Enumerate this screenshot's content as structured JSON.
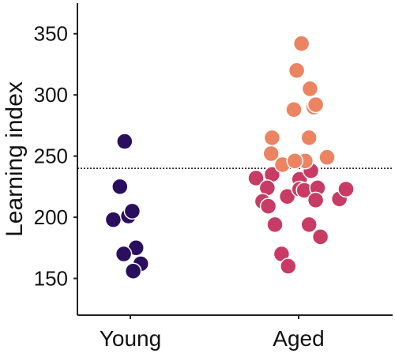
{
  "chart_data": {
    "type": "scatter",
    "ylabel": "Learning index",
    "xlabel": "",
    "title": "",
    "categories": [
      "Young",
      "Aged"
    ],
    "ylim": [
      120,
      375
    ],
    "yticks": [
      150,
      200,
      250,
      300,
      350
    ],
    "reference_line": {
      "y": 240,
      "style": "dotted"
    },
    "grid": false,
    "series": [
      {
        "category": "Young",
        "color": "#2a0f5e",
        "points": [
          {
            "x": -0.06,
            "y": 262
          },
          {
            "x": -0.11,
            "y": 225
          },
          {
            "x": -0.18,
            "y": 198
          },
          {
            "x": -0.02,
            "y": 201
          },
          {
            "x": 0.02,
            "y": 205
          },
          {
            "x": 0.06,
            "y": 175
          },
          {
            "x": -0.07,
            "y": 170
          },
          {
            "x": 0.11,
            "y": 162
          },
          {
            "x": 0.03,
            "y": 156
          }
        ]
      },
      {
        "category": "Aged",
        "color": "#c83b64",
        "points": [
          {
            "x": -0.45,
            "y": 232
          },
          {
            "x": -0.28,
            "y": 235
          },
          {
            "x": -0.33,
            "y": 224
          },
          {
            "x": -0.38,
            "y": 213
          },
          {
            "x": -0.32,
            "y": 209
          },
          {
            "x": -0.12,
            "y": 217
          },
          {
            "x": -0.25,
            "y": 194
          },
          {
            "x": -0.18,
            "y": 170
          },
          {
            "x": -0.11,
            "y": 160
          },
          {
            "x": 0.01,
            "y": 231
          },
          {
            "x": 0.01,
            "y": 223
          },
          {
            "x": 0.06,
            "y": 222
          },
          {
            "x": 0.13,
            "y": 238
          },
          {
            "x": 0.2,
            "y": 224
          },
          {
            "x": 0.18,
            "y": 214
          },
          {
            "x": 0.11,
            "y": 194
          },
          {
            "x": 0.23,
            "y": 184
          },
          {
            "x": 0.43,
            "y": 215
          },
          {
            "x": 0.5,
            "y": 223
          }
        ]
      },
      {
        "category": "Aged",
        "color": "#ec8461",
        "points": [
          {
            "x": -0.28,
            "y": 265
          },
          {
            "x": -0.29,
            "y": 252
          },
          {
            "x": -0.17,
            "y": 243
          },
          {
            "x": -0.05,
            "y": 288
          },
          {
            "x": -0.02,
            "y": 320
          },
          {
            "x": 0.03,
            "y": 342
          },
          {
            "x": 0.12,
            "y": 305
          },
          {
            "x": 0.16,
            "y": 290
          },
          {
            "x": 0.18,
            "y": 292
          },
          {
            "x": 0.11,
            "y": 265
          },
          {
            "x": 0.07,
            "y": 246
          },
          {
            "x": -0.04,
            "y": 246
          },
          {
            "x": 0.3,
            "y": 249
          }
        ]
      }
    ]
  }
}
